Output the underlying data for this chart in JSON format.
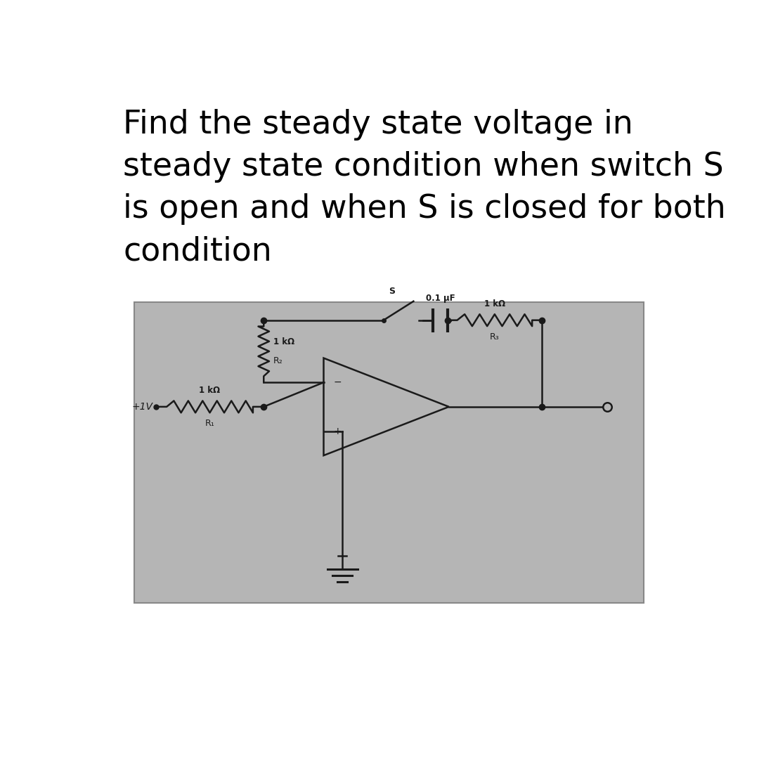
{
  "title_line1": "Find the steady state voltage in",
  "title_line2": "steady state condition when switch S",
  "title_line3": "is open and when S is closed for both",
  "title_line4": "condition",
  "title_fontsize": 33,
  "bg_color": "#ffffff",
  "circuit_bg": "#bbbbbb",
  "circuit_color": "#1a1a1a",
  "lw": 1.8
}
